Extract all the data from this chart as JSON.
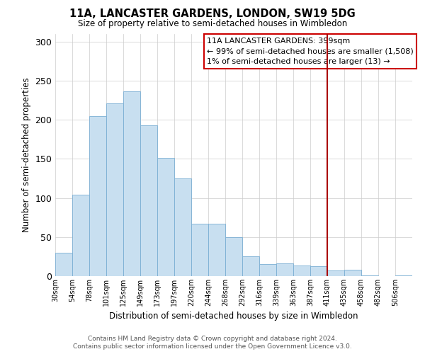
{
  "title": "11A, LANCASTER GARDENS, LONDON, SW19 5DG",
  "subtitle": "Size of property relative to semi-detached houses in Wimbledon",
  "xlabel": "Distribution of semi-detached houses by size in Wimbledon",
  "ylabel": "Number of semi-detached properties",
  "bin_labels": [
    "30sqm",
    "54sqm",
    "78sqm",
    "101sqm",
    "125sqm",
    "149sqm",
    "173sqm",
    "197sqm",
    "220sqm",
    "244sqm",
    "268sqm",
    "292sqm",
    "316sqm",
    "339sqm",
    "363sqm",
    "387sqm",
    "411sqm",
    "435sqm",
    "458sqm",
    "482sqm",
    "506sqm"
  ],
  "bar_heights": [
    30,
    104,
    205,
    221,
    236,
    193,
    151,
    125,
    67,
    67,
    50,
    25,
    15,
    16,
    14,
    13,
    7,
    8,
    1,
    0,
    1
  ],
  "bar_color": "#c8dff0",
  "bar_edge_color": "#7bafd4",
  "vline_x_index": 16,
  "vline_color": "#aa0000",
  "annotation_title": "11A LANCASTER GARDENS: 399sqm",
  "annotation_line1": "← 99% of semi-detached houses are smaller (1,508)",
  "annotation_line2": "1% of semi-detached houses are larger (13) →",
  "annotation_box_color": "#ffffff",
  "annotation_box_edge": "#cc0000",
  "footer_line1": "Contains HM Land Registry data © Crown copyright and database right 2024.",
  "footer_line2": "Contains public sector information licensed under the Open Government Licence v3.0.",
  "yticks": [
    0,
    50,
    100,
    150,
    200,
    250,
    300
  ],
  "ylim": [
    0,
    310
  ],
  "background_color": "#ffffff",
  "grid_color": "#cccccc"
}
